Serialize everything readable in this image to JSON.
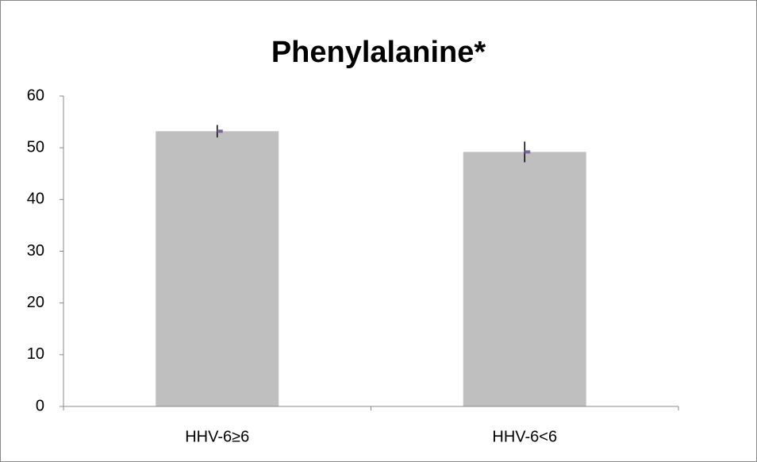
{
  "chart_data": {
    "type": "bar",
    "title": "Phenylalanine*",
    "categories": [
      "HHV-6≥6",
      "HHV-6<6"
    ],
    "values": [
      53.2,
      49.2
    ],
    "errors": [
      1.2,
      2
    ],
    "color": "#bfbfbf",
    "error_color": "#000000",
    "ylim": [
      0,
      60
    ],
    "yticks": [
      0,
      10,
      20,
      30,
      40,
      50,
      60
    ],
    "grid": false
  }
}
